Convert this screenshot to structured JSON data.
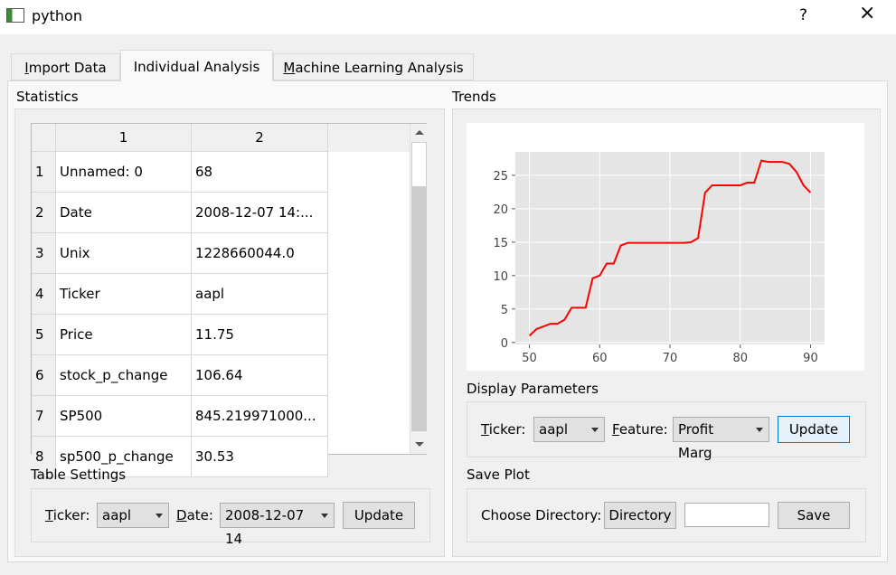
{
  "window": {
    "title": "python",
    "help": "?",
    "close": "×"
  },
  "tabs": [
    "Import Data",
    "Individual Analysis",
    "Machine Learning Analysis"
  ],
  "statistics": {
    "label": "Statistics",
    "table": {
      "columns": [
        "1",
        "2"
      ],
      "rows": [
        [
          "1",
          "Unnamed: 0",
          "68"
        ],
        [
          "2",
          "Date",
          "2008-12-07 14:..."
        ],
        [
          "3",
          "Unix",
          "1228660044.0"
        ],
        [
          "4",
          "Ticker",
          "aapl"
        ],
        [
          "5",
          "Price",
          "11.75"
        ],
        [
          "6",
          "stock_p_change",
          "106.64"
        ],
        [
          "7",
          "SP500",
          "845.219971000..."
        ],
        [
          "8",
          "sp500_p_change",
          "30.53"
        ]
      ]
    }
  },
  "table_settings": {
    "label": "Table Settings",
    "ticker_label": "Ticker:",
    "ticker": "aapl",
    "date_label": "Date:",
    "date": "2008-12-07 14",
    "button": "Update"
  },
  "trends": {
    "label": "Trends"
  },
  "chart_data": {
    "type": "line",
    "x": [
      50,
      51,
      52,
      53,
      54,
      55,
      56,
      57,
      58,
      59,
      60,
      61,
      62,
      63,
      64,
      65,
      66,
      67,
      68,
      69,
      70,
      71,
      72,
      73,
      74,
      75,
      76,
      77,
      78,
      79,
      80,
      81,
      82,
      83,
      84,
      85,
      86,
      87,
      88,
      89,
      90
    ],
    "series": [
      {
        "color": "#ff0000",
        "values": [
          1.0,
          2.0,
          2.4,
          2.8,
          2.8,
          3.4,
          5.2,
          5.2,
          5.2,
          9.6,
          10.0,
          11.8,
          11.8,
          14.5,
          14.9,
          14.9,
          14.9,
          14.9,
          14.9,
          14.9,
          14.9,
          14.9,
          14.9,
          15.0,
          15.6,
          22.4,
          23.5,
          23.5,
          23.5,
          23.5,
          23.5,
          23.9,
          23.9,
          27.2,
          27.0,
          27.0,
          27.0,
          26.7,
          25.5,
          23.5,
          22.4
        ]
      }
    ],
    "xlim": [
      48,
      92
    ],
    "ylim": [
      -0.3,
      28.5
    ],
    "xticks": [
      50,
      60,
      70,
      80,
      90
    ],
    "yticks": [
      0,
      5,
      10,
      15,
      20,
      25
    ],
    "grid": true
  },
  "display_parameters": {
    "label": "Display Parameters",
    "ticker_label": "Ticker:",
    "ticker": "aapl",
    "feature_label": "Feature:",
    "feature": "Profit Marg",
    "button": "Update"
  },
  "save_plot": {
    "label": "Save Plot",
    "directory_label": "Choose Directory:",
    "directory_button": "Directory",
    "save_button": "Save"
  }
}
